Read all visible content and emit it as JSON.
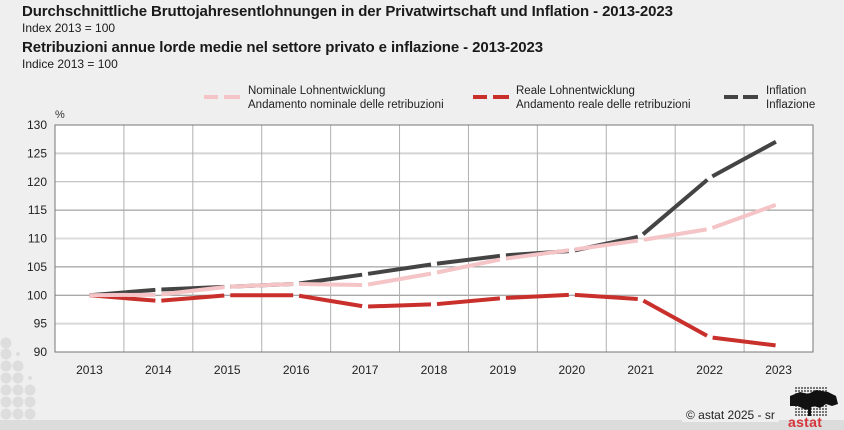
{
  "header": {
    "title_de": "Durchschnittliche Bruttojahresentlohnungen in der Privatwirtschaft und Inflation - 2013-2023",
    "subtitle_de": "Index 2013 = 100",
    "title_it": "Retribuzioni annue lorde medie nel settore privato e inflazione - 2013-2023",
    "subtitle_it": "Indice 2013 = 100"
  },
  "footer": {
    "copyright": "© astat 2025 - sr",
    "logo_text": "astat"
  },
  "colors": {
    "nominal": "#f4c4c6",
    "real": "#c9302c",
    "inflation": "#444444",
    "logo_red": "#d4343a"
  },
  "chart_data": {
    "type": "line",
    "ylabel": "%",
    "ylim": [
      90,
      130
    ],
    "yticks": [
      90,
      95,
      100,
      105,
      110,
      115,
      120,
      125,
      130
    ],
    "grid": true,
    "legend_position": "top",
    "categories": [
      "2013",
      "2014",
      "2015",
      "2016",
      "2017",
      "2018",
      "2019",
      "2020",
      "2021",
      "2022",
      "2023"
    ],
    "series": [
      {
        "key": "nominal",
        "name": "Nominale Lohnentwicklung",
        "name_it": "Andamento nominale delle retribuzioni",
        "values": [
          100,
          100.1,
          101.5,
          102.0,
          101.8,
          103.9,
          106.4,
          108.0,
          109.7,
          111.7,
          116.1
        ]
      },
      {
        "key": "real",
        "name": "Reale Lohnentwicklung",
        "name_it": "Andamento reale delle retribuzioni",
        "values": [
          100,
          99.0,
          100.0,
          100.0,
          98.0,
          98.4,
          99.5,
          100.1,
          99.3,
          92.6,
          91.1
        ]
      },
      {
        "key": "inflation",
        "name": "Inflation",
        "name_it": "Inflazione",
        "values": [
          100,
          101.0,
          101.5,
          102.0,
          103.7,
          105.5,
          107.0,
          107.8,
          110.4,
          120.7,
          127.3
        ]
      }
    ]
  }
}
